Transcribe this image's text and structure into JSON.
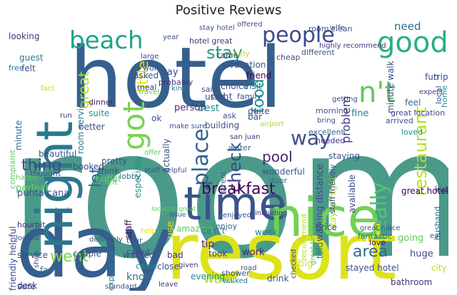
{
  "title": "Positive Reviews",
  "words": [
    {
      "t": "room",
      "c": "#4a9a8a"
    },
    {
      "t": "hotel",
      "c": "#35608d"
    },
    {
      "t": "day",
      "c": "#355f8d"
    },
    {
      "t": "resort",
      "c": "#dde318"
    },
    {
      "t": "time",
      "c": "#3b528b"
    },
    {
      "t": "nice",
      "c": "#73d055"
    },
    {
      "t": "night",
      "c": "#2a788e"
    },
    {
      "t": "got",
      "c": "#7ad151"
    },
    {
      "t": "beach",
      "c": "#20a486"
    },
    {
      "t": "people",
      "c": "#3e4a89"
    },
    {
      "t": "good",
      "c": "#2ab07f"
    },
    {
      "t": "n't",
      "c": "#5ec962"
    },
    {
      "t": "great",
      "c": "#b5de2b"
    },
    {
      "t": "way",
      "c": "#3d4d8a"
    },
    {
      "t": "place",
      "c": "#34618d"
    },
    {
      "t": "check",
      "c": "#3e4989"
    },
    {
      "t": "lot",
      "c": "#31688e"
    },
    {
      "t": "thing",
      "c": "#3f4788"
    },
    {
      "t": "restaurant",
      "c": "#b8de29"
    },
    {
      "t": "really",
      "c": "#54c568"
    },
    {
      "t": "breakfast",
      "c": "#440154"
    },
    {
      "t": "pool",
      "c": "#482677"
    },
    {
      "t": "food",
      "c": "#21918c"
    },
    {
      "t": "went",
      "c": "#84d44b"
    },
    {
      "t": "area",
      "c": "#31688e"
    },
    {
      "t": "want",
      "c": "#a8db34"
    },
    {
      "t": "problem",
      "c": "#453781"
    },
    {
      "t": "stay",
      "c": "#1f9a8a"
    },
    {
      "t": "little",
      "c": "#dde318"
    },
    {
      "t": "need",
      "c": "#2d708e"
    },
    {
      "t": "staff",
      "c": "#440154"
    },
    {
      "t": "stayed hotel",
      "c": "#3b528b"
    },
    {
      "t": "fantastic",
      "c": "#2a788e"
    },
    {
      "t": "going",
      "c": "#5ec962"
    },
    {
      "t": "huge",
      "c": "#3e4a89"
    },
    {
      "t": "city",
      "c": "#b5de2b"
    },
    {
      "t": "husband",
      "c": "#31688e"
    },
    {
      "t": "bathroom",
      "c": "#46337e"
    },
    {
      "t": "told",
      "c": "#2a788e"
    },
    {
      "t": "big",
      "c": "#dde318"
    },
    {
      "t": "drink",
      "c": "#3b528b"
    },
    {
      "t": "evening",
      "c": "#21918c"
    },
    {
      "t": "close",
      "c": "#3b528b"
    },
    {
      "t": "use",
      "c": "#dde318"
    },
    {
      "t": "know",
      "c": "#2a788e"
    },
    {
      "t": "wanted",
      "c": "#3e4a89"
    },
    {
      "t": "come",
      "c": "#21918c"
    },
    {
      "t": "expensive",
      "c": "#2a788e"
    },
    {
      "t": "work",
      "c": "#481f70"
    },
    {
      "t": "love",
      "c": "#440154"
    },
    {
      "t": "tip",
      "c": "#482677"
    },
    {
      "t": "took",
      "c": "#3e4a89"
    },
    {
      "t": "bad",
      "c": "#453781"
    },
    {
      "t": "amazing",
      "c": "#5ec962"
    },
    {
      "t": "enjoy",
      "c": "#31688e"
    },
    {
      "t": "week",
      "c": "#2a788e"
    },
    {
      "t": "couple",
      "c": "#3b528b"
    },
    {
      "t": "far",
      "c": "#2c728e"
    },
    {
      "t": "desk",
      "c": "#482677"
    },
    {
      "t": "service",
      "c": "#3b528b"
    },
    {
      "t": "hourbit",
      "c": "#46337e"
    },
    {
      "t": "look",
      "c": "#31688e"
    },
    {
      "t": "perfect",
      "c": "#5ec962"
    },
    {
      "t": "thought",
      "c": "#3b528b"
    },
    {
      "t": "booked",
      "c": "#3e4a89"
    },
    {
      "t": "beautiful",
      "c": "#3b528b"
    },
    {
      "t": "felt",
      "c": "#3e4a89"
    },
    {
      "t": "guest",
      "c": "#2a788e"
    },
    {
      "t": "looking",
      "c": "#46337e"
    },
    {
      "t": "suite",
      "c": "#21918c"
    },
    {
      "t": "better",
      "c": "#3b528b"
    },
    {
      "t": "dinner",
      "c": "#482677"
    },
    {
      "t": "choice",
      "c": "#3e4a89"
    },
    {
      "t": "family",
      "c": "#3b528b"
    },
    {
      "t": "visit",
      "c": "#2a788e"
    },
    {
      "t": "friend",
      "c": "#440154"
    },
    {
      "t": "best",
      "c": "#21918c"
    },
    {
      "t": "right",
      "c": "#3b528b"
    },
    {
      "t": "said",
      "c": "#3b528b"
    },
    {
      "t": "person",
      "c": "#482677"
    },
    {
      "t": "quite",
      "c": "#3e4a89"
    },
    {
      "t": "morning",
      "c": "#3b528b"
    },
    {
      "t": "excellent",
      "c": "#31688e"
    },
    {
      "t": "fine",
      "c": "#2a788e"
    },
    {
      "t": "great location",
      "c": "#3e4a89"
    },
    {
      "t": "feel",
      "c": "#31688e"
    },
    {
      "t": "arrived",
      "c": "#3b528b"
    },
    {
      "t": "loved",
      "c": "#21918c"
    },
    {
      "t": "needed",
      "c": "#46337e"
    },
    {
      "t": "ask",
      "c": "#3e4a89"
    },
    {
      "t": "bar",
      "c": "#3b528b"
    },
    {
      "t": "used",
      "c": "#3e4a89"
    },
    {
      "t": "building",
      "c": "#3b528b"
    },
    {
      "t": "ok",
      "c": "#3b528b"
    },
    {
      "t": "water",
      "c": "#31688e"
    },
    {
      "t": "staying",
      "c": "#3b528b"
    },
    {
      "t": "walking distance",
      "c": "#3e4a89"
    },
    {
      "t": "stayed night",
      "c": "#b8de29"
    },
    {
      "t": "staff friendly",
      "c": "#3b528b"
    },
    {
      "t": "available",
      "c": "#3e4a89"
    },
    {
      "t": "wonderful",
      "c": "#3b528b"
    },
    {
      "t": "door",
      "c": "#31688e"
    },
    {
      "t": "street",
      "c": "#31688e"
    },
    {
      "t": "actually",
      "c": "#3b528b"
    },
    {
      "t": "especially",
      "c": "#21918c"
    },
    {
      "t": "pretty",
      "c": "#3b528b"
    },
    {
      "t": "think",
      "c": "#3e4a89"
    },
    {
      "t": "lobby",
      "c": "#2a788e"
    },
    {
      "t": "buffet",
      "c": "#5ec962"
    },
    {
      "t": "punta cana",
      "c": "#3b528b"
    },
    {
      "t": "price",
      "c": "#3e4a89"
    },
    {
      "t": "ca n't",
      "c": "#2a788e"
    },
    {
      "t": "left",
      "c": "#5ec962"
    },
    {
      "t": "friendly helpful",
      "c": "#3e4a89"
    },
    {
      "t": "kid",
      "c": "#3b528b"
    },
    {
      "t": "great hotel",
      "c": "#440154"
    },
    {
      "t": "minute walk",
      "c": "#3e4a89"
    },
    {
      "t": "fun",
      "c": "#3b528b"
    },
    {
      "t": "trip",
      "c": "#3e4a89"
    },
    {
      "t": "local",
      "c": "#3b528b"
    },
    {
      "t": "home",
      "c": "#21918c"
    },
    {
      "t": "room service",
      "c": "#2a788e"
    },
    {
      "t": "vacation",
      "c": "#3b528b"
    },
    {
      "t": "lovely",
      "c": "#b8de29"
    },
    {
      "t": "came",
      "c": "#46337e"
    },
    {
      "t": "asked",
      "c": "#3b528b"
    },
    {
      "t": "say",
      "c": "#3e4a89"
    },
    {
      "t": "meal",
      "c": "#46337e"
    },
    {
      "t": "minute",
      "c": "#31688e"
    },
    {
      "t": "complaint",
      "c": "#5ec962"
    },
    {
      "t": "free",
      "c": "#2a788e"
    },
    {
      "t": "stay hotel",
      "c": "#3b528b"
    },
    {
      "t": "hotel great",
      "c": "#46337e"
    },
    {
      "t": "offered",
      "c": "#3e4a89"
    },
    {
      "t": "room clean",
      "c": "#3b528b"
    },
    {
      "t": "highly recommend",
      "c": "#46337e"
    },
    {
      "t": "different",
      "c": "#3b528b"
    },
    {
      "t": "cheap",
      "c": "#3e4a89"
    },
    {
      "t": "year",
      "c": "#3b528b"
    },
    {
      "t": "large",
      "c": "#3e4a89"
    },
    {
      "t": "worth",
      "c": "#3b528b"
    },
    {
      "t": "probably",
      "c": "#46337e"
    },
    {
      "t": "kind",
      "c": "#2a788e"
    },
    {
      "t": "travel",
      "c": "#5ec962"
    },
    {
      "t": "make sure",
      "c": "#3b528b"
    },
    {
      "t": "airport",
      "c": "#a8db34"
    },
    {
      "t": "san juan",
      "c": "#46337e"
    },
    {
      "t": "offer",
      "c": "#5ec962"
    },
    {
      "t": "staff helpful",
      "c": "#3b528b"
    },
    {
      "t": "location great",
      "c": "#5ec962"
    },
    {
      "t": "issue",
      "c": "#3b528b"
    },
    {
      "t": "enjoyed",
      "c": "#3e4a89"
    },
    {
      "t": "including",
      "c": "#46337e"
    },
    {
      "t": "definitely",
      "c": "#3b528b"
    },
    {
      "t": "tour",
      "c": "#3b528b"
    },
    {
      "t": "called",
      "c": "#3e4a89"
    },
    {
      "t": "given",
      "c": "#46337e"
    },
    {
      "t": "road",
      "c": "#3b528b"
    },
    {
      "t": "shower",
      "c": "#3b528b"
    },
    {
      "t": "walked",
      "c": "#2a788e"
    },
    {
      "t": "checked",
      "c": "#3e4a89"
    },
    {
      "t": "sure",
      "c": "#3b528b"
    },
    {
      "t": "leave",
      "c": "#46337e"
    },
    {
      "t": "standard",
      "c": "#3b528b"
    },
    {
      "t": "shop",
      "c": "#3e4a89"
    },
    {
      "t": "eat",
      "c": "#3b528b"
    },
    {
      "t": "great time",
      "c": "#5ec962"
    },
    {
      "t": "great place",
      "c": "#3b528b"
    },
    {
      "t": "getting",
      "c": "#3e4a89"
    },
    {
      "t": "bring",
      "c": "#3b528b"
    },
    {
      "t": "recommend",
      "c": "#b5de2b"
    },
    {
      "t": "expect",
      "c": "#3e4a89"
    },
    {
      "t": "fact",
      "c": "#b8de29"
    },
    {
      "t": "run",
      "c": "#46337e"
    },
    {
      "t": "happy",
      "c": "#5ec962"
    },
    {
      "t": "looked",
      "c": "#3b528b"
    },
    {
      "t": "wife",
      "c": "#3e4a89"
    },
    {
      "t": "help",
      "c": "#dde318"
    }
  ]
}
